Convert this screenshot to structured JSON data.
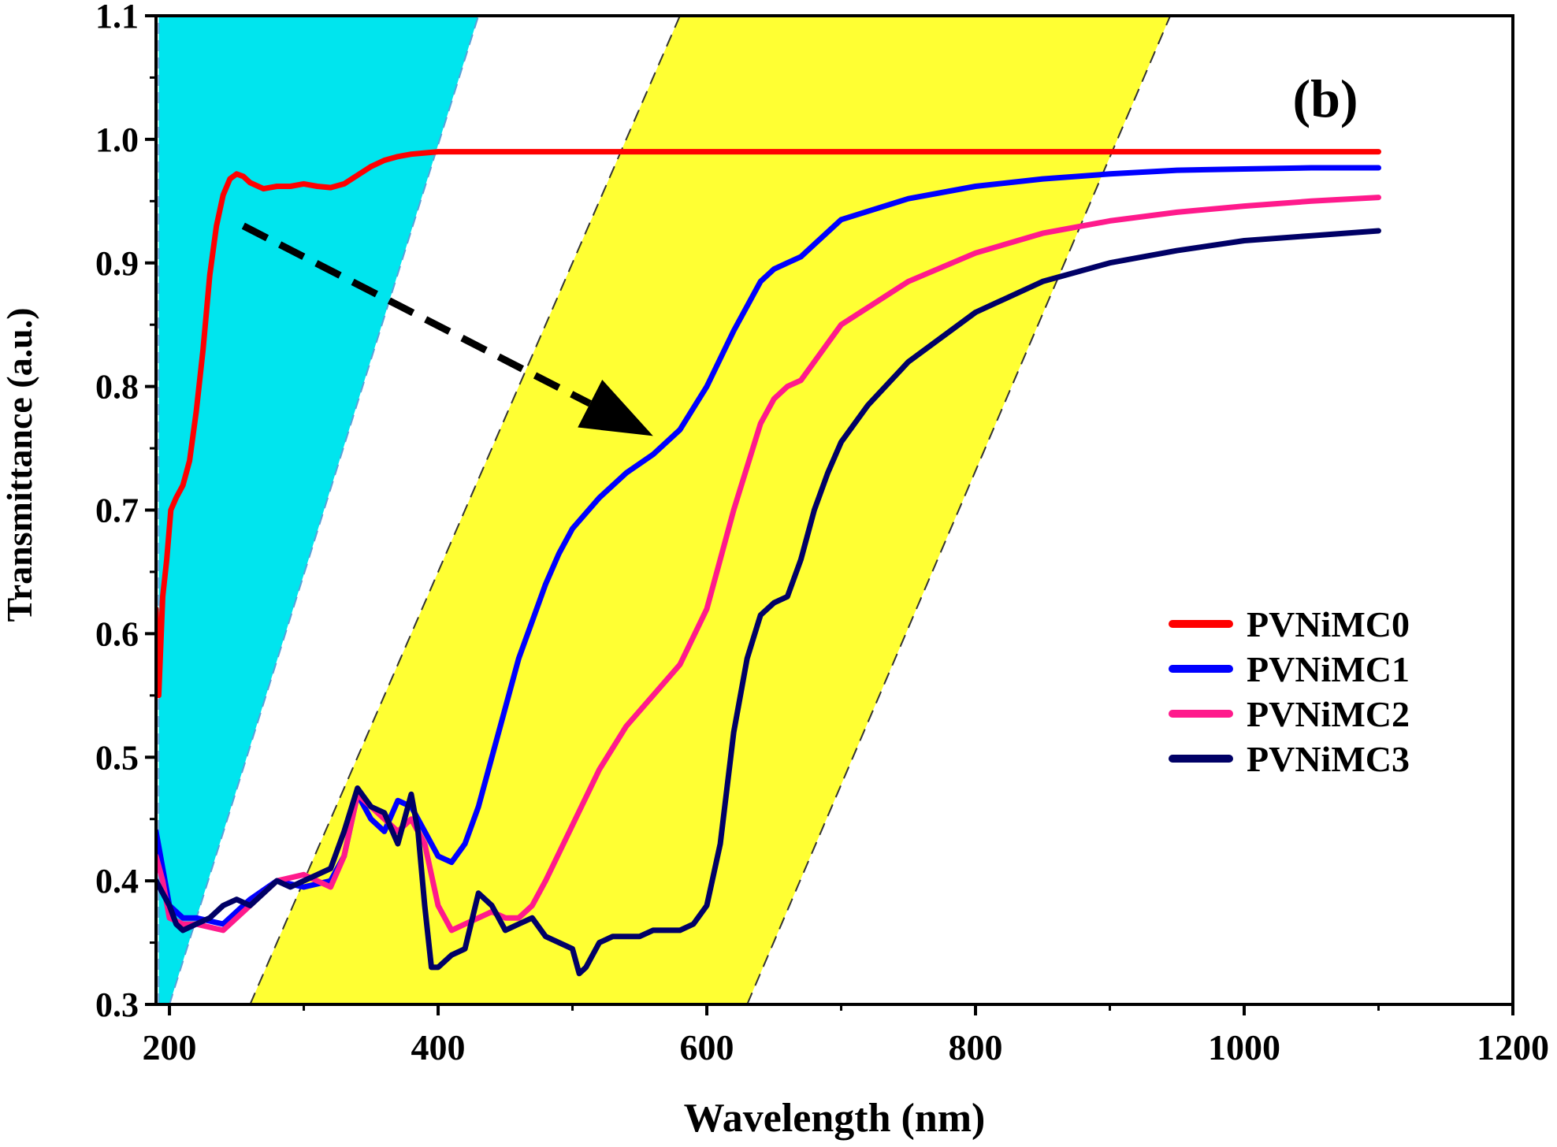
{
  "chart_data": {
    "type": "line",
    "title": "",
    "panel_label": "(b)",
    "xlabel": "Wavelength (nm)",
    "ylabel": "Transmittance (a.u.)",
    "xlim": [
      190,
      1200
    ],
    "ylim": [
      0.3,
      1.1
    ],
    "x_ticks": [
      200,
      400,
      600,
      800,
      1000,
      1200
    ],
    "x_minor_ticks": [
      300,
      500,
      700,
      900,
      1100
    ],
    "y_ticks": [
      0.3,
      0.4,
      0.5,
      0.6,
      0.7,
      0.8,
      0.9,
      1.0,
      1.1
    ],
    "x_tick_labels": [
      "200",
      "400",
      "600",
      "800",
      "1000",
      "1200"
    ],
    "y_tick_labels": [
      "0.3",
      "0.4",
      "0.5",
      "0.6",
      "0.7",
      "0.8",
      "0.9",
      "1.0",
      "1.1"
    ],
    "grid": false,
    "legend_position": "center-right",
    "shaded_regions": [
      {
        "name": "uv-region",
        "color": "#00e5ee",
        "bottom": [
          192,
          200
        ],
        "top": [
          192,
          430
        ]
      },
      {
        "name": "absorption-band",
        "color": "#ffff33",
        "bottom": [
          260,
          630
        ],
        "top": [
          580,
          945
        ]
      }
    ],
    "arrow": {
      "from": [
        255,
        0.93
      ],
      "to": [
        560,
        0.76
      ]
    },
    "series": [
      {
        "name": "PVNiMC0",
        "color": "#ff0000",
        "x": [
          190,
          192,
          195,
          198,
          201,
          205,
          210,
          215,
          220,
          225,
          230,
          235,
          240,
          245,
          250,
          255,
          260,
          270,
          280,
          290,
          300,
          310,
          320,
          330,
          340,
          350,
          360,
          370,
          380,
          390,
          400,
          420,
          450,
          500,
          600,
          700,
          800,
          900,
          1000,
          1100
        ],
        "y": [
          0.62,
          0.55,
          0.63,
          0.66,
          0.7,
          0.71,
          0.72,
          0.74,
          0.78,
          0.83,
          0.89,
          0.93,
          0.955,
          0.968,
          0.972,
          0.97,
          0.965,
          0.96,
          0.962,
          0.962,
          0.964,
          0.962,
          0.961,
          0.964,
          0.971,
          0.978,
          0.983,
          0.986,
          0.988,
          0.989,
          0.99,
          0.99,
          0.99,
          0.99,
          0.99,
          0.99,
          0.99,
          0.99,
          0.99,
          0.99
        ]
      },
      {
        "name": "PVNiMC1",
        "color": "#0000ff",
        "x": [
          190,
          195,
          200,
          210,
          220,
          240,
          260,
          280,
          300,
          320,
          330,
          340,
          350,
          360,
          370,
          380,
          390,
          400,
          410,
          420,
          430,
          440,
          450,
          460,
          470,
          480,
          490,
          500,
          520,
          540,
          560,
          580,
          600,
          620,
          640,
          650,
          660,
          670,
          680,
          700,
          750,
          800,
          850,
          900,
          950,
          1000,
          1050,
          1100
        ],
        "y": [
          0.44,
          0.41,
          0.38,
          0.37,
          0.37,
          0.365,
          0.385,
          0.4,
          0.395,
          0.4,
          0.42,
          0.47,
          0.45,
          0.44,
          0.465,
          0.46,
          0.44,
          0.42,
          0.415,
          0.43,
          0.46,
          0.5,
          0.54,
          0.58,
          0.61,
          0.64,
          0.665,
          0.685,
          0.71,
          0.73,
          0.745,
          0.765,
          0.8,
          0.845,
          0.885,
          0.895,
          0.9,
          0.905,
          0.915,
          0.935,
          0.952,
          0.962,
          0.968,
          0.972,
          0.975,
          0.976,
          0.977,
          0.977
        ]
      },
      {
        "name": "PVNiMC2",
        "color": "#ff1a8c",
        "x": [
          190,
          195,
          200,
          210,
          220,
          240,
          260,
          280,
          300,
          320,
          330,
          340,
          350,
          360,
          370,
          380,
          390,
          400,
          410,
          420,
          430,
          440,
          450,
          460,
          470,
          480,
          500,
          520,
          540,
          560,
          580,
          600,
          620,
          640,
          650,
          660,
          670,
          680,
          700,
          750,
          800,
          850,
          900,
          950,
          1000,
          1050,
          1100
        ],
        "y": [
          0.42,
          0.4,
          0.37,
          0.365,
          0.365,
          0.36,
          0.38,
          0.4,
          0.405,
          0.395,
          0.42,
          0.47,
          0.46,
          0.45,
          0.44,
          0.45,
          0.43,
          0.38,
          0.36,
          0.365,
          0.37,
          0.375,
          0.37,
          0.37,
          0.38,
          0.4,
          0.445,
          0.49,
          0.525,
          0.55,
          0.575,
          0.62,
          0.7,
          0.77,
          0.79,
          0.8,
          0.805,
          0.82,
          0.85,
          0.885,
          0.908,
          0.924,
          0.934,
          0.941,
          0.946,
          0.95,
          0.953
        ]
      },
      {
        "name": "PVNiMC3",
        "color": "#000066",
        "x": [
          190,
          195,
          200,
          205,
          210,
          220,
          230,
          240,
          250,
          260,
          270,
          280,
          290,
          300,
          310,
          320,
          330,
          340,
          350,
          360,
          370,
          380,
          385,
          390,
          395,
          400,
          410,
          420,
          430,
          440,
          450,
          460,
          470,
          480,
          490,
          500,
          505,
          510,
          520,
          530,
          540,
          550,
          560,
          570,
          580,
          590,
          600,
          610,
          620,
          630,
          640,
          650,
          660,
          670,
          680,
          690,
          700,
          720,
          750,
          800,
          850,
          900,
          950,
          1000,
          1050,
          1100
        ],
        "y": [
          0.4,
          0.39,
          0.38,
          0.365,
          0.36,
          0.365,
          0.37,
          0.38,
          0.385,
          0.38,
          0.39,
          0.4,
          0.395,
          0.4,
          0.405,
          0.41,
          0.44,
          0.475,
          0.46,
          0.455,
          0.43,
          0.47,
          0.44,
          0.38,
          0.33,
          0.33,
          0.34,
          0.345,
          0.39,
          0.38,
          0.36,
          0.365,
          0.37,
          0.355,
          0.35,
          0.345,
          0.325,
          0.33,
          0.35,
          0.355,
          0.355,
          0.355,
          0.36,
          0.36,
          0.36,
          0.365,
          0.38,
          0.43,
          0.52,
          0.58,
          0.615,
          0.625,
          0.63,
          0.66,
          0.7,
          0.73,
          0.755,
          0.785,
          0.82,
          0.86,
          0.885,
          0.9,
          0.91,
          0.918,
          0.922,
          0.926
        ]
      }
    ]
  }
}
